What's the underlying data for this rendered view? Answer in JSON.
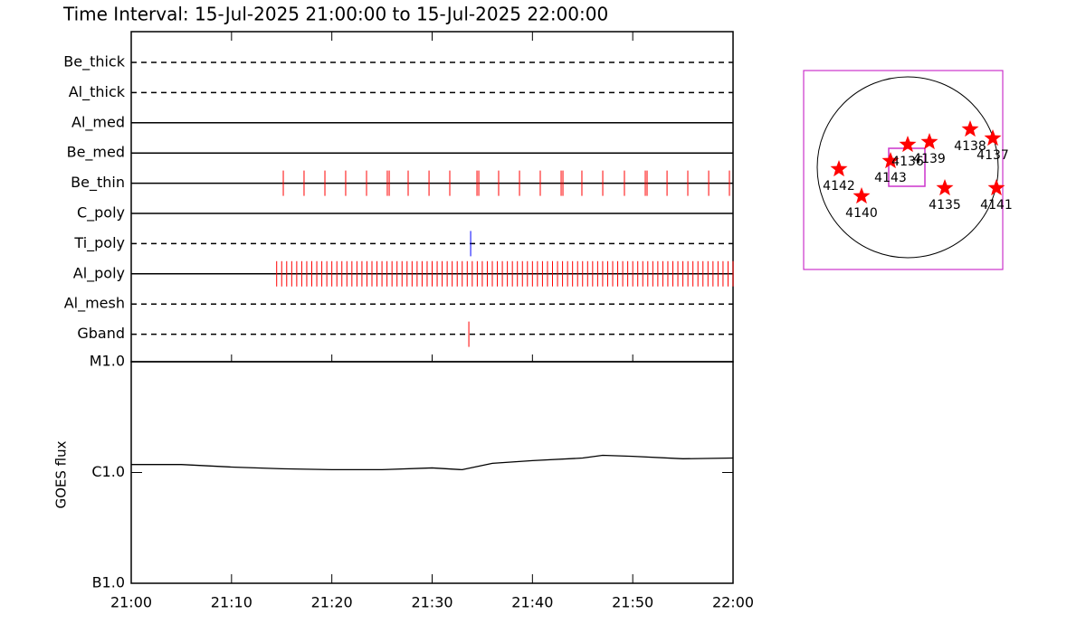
{
  "chart_data": [
    {
      "type": "event",
      "title": "Time Interval: 15-Jul-2025 21:00:00 to 15-Jul-2025 22:00:00",
      "xlim": [
        0,
        60
      ],
      "rows": [
        {
          "name": "Be_thick",
          "style": "dashed",
          "color": "#ff0000",
          "times": []
        },
        {
          "name": "Al_thick",
          "style": "dashed",
          "color": "#ff0000",
          "times": []
        },
        {
          "name": "Al_med",
          "style": "solid",
          "color": "#ff0000",
          "times": []
        },
        {
          "name": "Be_med",
          "style": "solid",
          "color": "#ff0000",
          "times": []
        },
        {
          "name": "Be_thin",
          "style": "solid",
          "color": "#ff0000",
          "times": [
            15.16,
            17.23,
            19.31,
            21.38,
            23.46,
            25.53,
            25.72,
            27.61,
            29.69,
            31.76,
            34.47,
            34.65,
            36.63,
            38.71,
            40.78,
            42.86,
            43.04,
            44.93,
            47.01,
            49.17,
            51.25,
            51.43,
            53.42,
            55.49,
            57.57,
            59.64
          ]
        },
        {
          "name": "C_poly",
          "style": "solid",
          "color": "#ff0000",
          "times": []
        },
        {
          "name": "Ti_poly",
          "style": "dashed",
          "color": "#0000ff",
          "times": [
            33.84
          ]
        },
        {
          "name": "Al_poly",
          "style": "solid",
          "color": "#ff0000",
          "times": [
            14.5,
            15,
            15.5,
            16,
            16.5,
            17,
            17.5,
            18,
            18.5,
            19,
            19.5,
            20,
            20.5,
            21,
            21.5,
            22,
            22.5,
            23,
            23.5,
            24,
            24.5,
            25,
            25.5,
            26,
            26.5,
            27,
            27.5,
            28,
            28.5,
            29,
            29.5,
            30,
            30.5,
            31,
            31.5,
            32,
            32.5,
            33,
            33.5,
            34,
            34.5,
            35,
            35.5,
            36,
            36.5,
            37,
            37.5,
            38,
            38.5,
            39,
            39.5,
            40,
            40.5,
            41,
            41.5,
            42,
            42.5,
            43,
            43.5,
            44,
            44.5,
            45,
            45.5,
            46,
            46.5,
            47,
            47.5,
            48,
            48.5,
            49,
            49.5,
            50,
            50.5,
            51,
            51.5,
            52,
            52.5,
            53,
            53.5,
            54,
            54.5,
            55,
            55.5,
            56,
            56.5,
            57,
            57.5,
            58,
            58.5,
            59,
            59.5,
            60
          ]
        },
        {
          "name": "Al_mesh",
          "style": "dashed",
          "color": "#ff0000",
          "times": []
        },
        {
          "name": "Gband",
          "style": "dashed",
          "color": "#ff0000",
          "times": [
            33.66
          ]
        }
      ]
    },
    {
      "type": "line",
      "ylabel": "GOES flux",
      "log": true,
      "color": "#000000",
      "x": [
        0,
        5,
        10,
        15,
        20,
        25,
        30,
        33,
        36,
        40,
        45,
        47,
        50,
        55,
        60
      ],
      "values": [
        1.18e-06,
        1.18e-06,
        1.12e-06,
        1.08e-06,
        1.06e-06,
        1.06e-06,
        1.1e-06,
        1.06e-06,
        1.21e-06,
        1.28e-06,
        1.35e-06,
        1.43e-06,
        1.4e-06,
        1.33e-06,
        1.35e-06
      ],
      "xlim": [
        0,
        60
      ],
      "xticks": [
        {
          "value": 0,
          "label": "21:00"
        },
        {
          "value": 10,
          "label": "21:10"
        },
        {
          "value": 20,
          "label": "21:20"
        },
        {
          "value": 30,
          "label": "21:30"
        },
        {
          "value": 40,
          "label": "21:40"
        },
        {
          "value": 50,
          "label": "21:50"
        },
        {
          "value": 60,
          "label": "22:00"
        }
      ],
      "ylim": [
        1e-07,
        1e-05
      ],
      "yticks": [
        {
          "value": 1e-07,
          "label": "B1.0"
        },
        {
          "value": 1e-06,
          "label": "C1.0"
        },
        {
          "value": 1e-05,
          "label": "M1.0"
        }
      ]
    },
    {
      "type": "scatter",
      "color": "#ff0000",
      "xlim": [
        -1.1,
        1.1
      ],
      "ylim": [
        -1.1,
        1.1
      ],
      "labels": [
        "4142",
        "4140",
        "4143",
        "4136",
        "4139",
        "4138",
        "4137",
        "4135",
        "4141"
      ],
      "x": [
        -0.76,
        -0.51,
        -0.19,
        0.0,
        0.24,
        0.69,
        0.94,
        0.41,
        0.98
      ],
      "y": [
        -0.02,
        -0.32,
        0.07,
        0.25,
        0.28,
        0.42,
        0.32,
        -0.23,
        -0.23
      ]
    }
  ]
}
